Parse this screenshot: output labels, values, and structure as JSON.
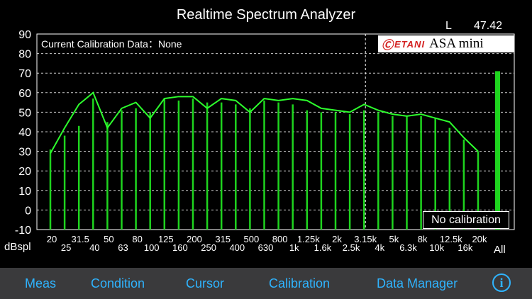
{
  "app": {
    "title": "Realtime Spectrum Analyzer"
  },
  "readout": {
    "channel": "L",
    "level": "47.42"
  },
  "calibration": {
    "text": "Current Calibration Data：None",
    "badge": "No calibration"
  },
  "brand": {
    "mark": "Ⓒ",
    "name": "ETANI",
    "product": "ASA mini"
  },
  "colors": {
    "bar": "#1ed41e",
    "peak": "#2dff2d",
    "grid": "#cccccc",
    "axis": "#ffffff",
    "tab": "#2fb4ff",
    "tabbar": "#3a3a3c"
  },
  "chart_data": {
    "type": "bar",
    "ylabel": "dBspl",
    "ylim": [
      -10,
      90
    ],
    "yticks": [
      "90",
      "80",
      "70",
      "60",
      "50",
      "40",
      "30",
      "20",
      "10",
      "0",
      "-10"
    ],
    "categories": [
      "20",
      "25",
      "31.5",
      "40",
      "50",
      "63",
      "80",
      "100",
      "125",
      "160",
      "200",
      "250",
      "315",
      "400",
      "500",
      "630",
      "800",
      "1k",
      "1.25k",
      "1.6k",
      "2k",
      "2.5k",
      "3.15k",
      "4k",
      "5k",
      "6.3k",
      "8k",
      "10k",
      "12.5k",
      "16k",
      "20k"
    ],
    "x_tick_labels_upper": [
      "20",
      "31.5",
      "50",
      "80",
      "125",
      "200",
      "315",
      "500",
      "800",
      "1.25k",
      "2k",
      "3.15k",
      "5k",
      "8k",
      "12.5k",
      "20k"
    ],
    "x_tick_labels_lower": [
      "25",
      "40",
      "63",
      "100",
      "160",
      "250",
      "400",
      "630",
      "1k",
      "1.6k",
      "2.5k",
      "4k",
      "6.3k",
      "10k",
      "16k"
    ],
    "values": [
      31,
      38,
      43,
      57,
      45,
      51,
      52,
      50,
      57,
      56,
      57,
      55,
      55,
      54,
      52,
      56,
      55,
      54,
      51,
      50,
      50,
      49,
      51,
      50,
      48,
      48,
      48,
      47,
      42,
      36,
      30
    ],
    "peaks": [
      29,
      42,
      54,
      60,
      42,
      52,
      55,
      47,
      57,
      58,
      58,
      52,
      57,
      56,
      50,
      57,
      56,
      57,
      56,
      52,
      51,
      50,
      54,
      51,
      49,
      48,
      49,
      47,
      45,
      37,
      30
    ],
    "all_value": 71,
    "all_label": "All",
    "grid": true
  },
  "tabbar": {
    "meas": "Meas",
    "condition": "Condition",
    "cursor": "Cursor",
    "calibration": "Calibration",
    "data_manager": "Data Manager",
    "info": "i"
  }
}
